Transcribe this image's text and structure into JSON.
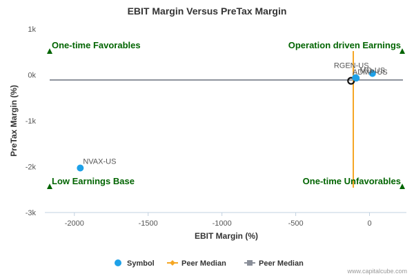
{
  "chart_data": {
    "type": "scatter",
    "title": "EBIT Margin Versus PreTax Margin",
    "xlabel": "EBIT Margin (%)",
    "ylabel": "PreTax Margin (%)",
    "xlim": [
      -2200,
      250
    ],
    "ylim": [
      -3000,
      1000
    ],
    "x_ticks": [
      -2000,
      -1500,
      -1000,
      -500,
      0
    ],
    "x_tick_labels": [
      "-2000",
      "-1500",
      "-1000",
      "-500",
      "0"
    ],
    "y_ticks": [
      1000,
      0,
      -1000,
      -2000,
      -3000
    ],
    "y_tick_labels": [
      "1k",
      "0k",
      "-1k",
      "-2k",
      "-3k"
    ],
    "grid": false,
    "quadrant_labels": {
      "top_left": "One-time Favorables",
      "top_right": "Operation driven Earnings",
      "bottom_left": "Low Earnings Base",
      "bottom_right": "One-time Unfavorables"
    },
    "points": [
      {
        "label": "NVAX-US",
        "x": -1960,
        "y": -2030
      },
      {
        "label": "RGEN-US",
        "x": -95,
        "y": -60
      },
      {
        "label": "MO-US",
        "x": 20,
        "y": 30
      },
      {
        "label": "ADMP-US",
        "x": -90,
        "y": -70
      }
    ],
    "highlight_point": {
      "x": -125,
      "y": -130
    },
    "peer_median_x": -110,
    "peer_median_y": -110,
    "legend": [
      {
        "name": "Symbol",
        "marker": "circle",
        "color": "#1ea1e8"
      },
      {
        "name": "Peer Median",
        "marker": "diamond-line",
        "color": "#f5a623"
      },
      {
        "name": "Peer Median",
        "marker": "square-line",
        "color": "#8a8f99"
      }
    ],
    "legend_position": "bottom",
    "colors": {
      "point": "#1ea1e8",
      "median_x": "#f5a623",
      "median_y": "#8a8f99",
      "quadrant_text": "#006400",
      "triangle": "#006400"
    }
  },
  "credit": "www.capitalcube.com"
}
